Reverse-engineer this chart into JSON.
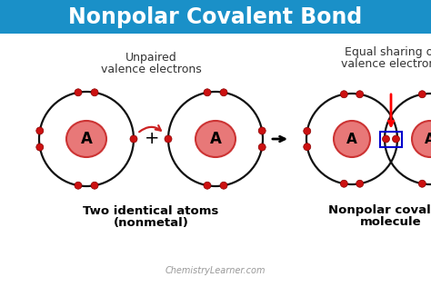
{
  "title": "Nonpolar Covalent Bond",
  "title_bg": "#1a90c8",
  "title_color": "#ffffff",
  "bg_color": "#ffffff",
  "atom_label": "A",
  "nucleus_color": "#e87878",
  "nucleus_edge": "#cc3333",
  "orbit_color": "#111111",
  "electron_color": "#cc1111",
  "electron_edge": "#880000",
  "text_color": "#333333",
  "label1_line1": "Unpaired",
  "label1_line2": "valence electrons",
  "label2_line1": "Equal sharing of",
  "label2_line2": "valence electrons",
  "bottom1_line1": "Two identical atoms",
  "bottom1_line2": "(nonmetal)",
  "bottom2_line1": "Nonpolar covalent",
  "bottom2_line2": "molecule",
  "watermark": "ChemistryLearner.com",
  "bond_box_color": "#0000cc",
  "curved_arrow_color": "#cc2222",
  "arrow_color": "#222222"
}
